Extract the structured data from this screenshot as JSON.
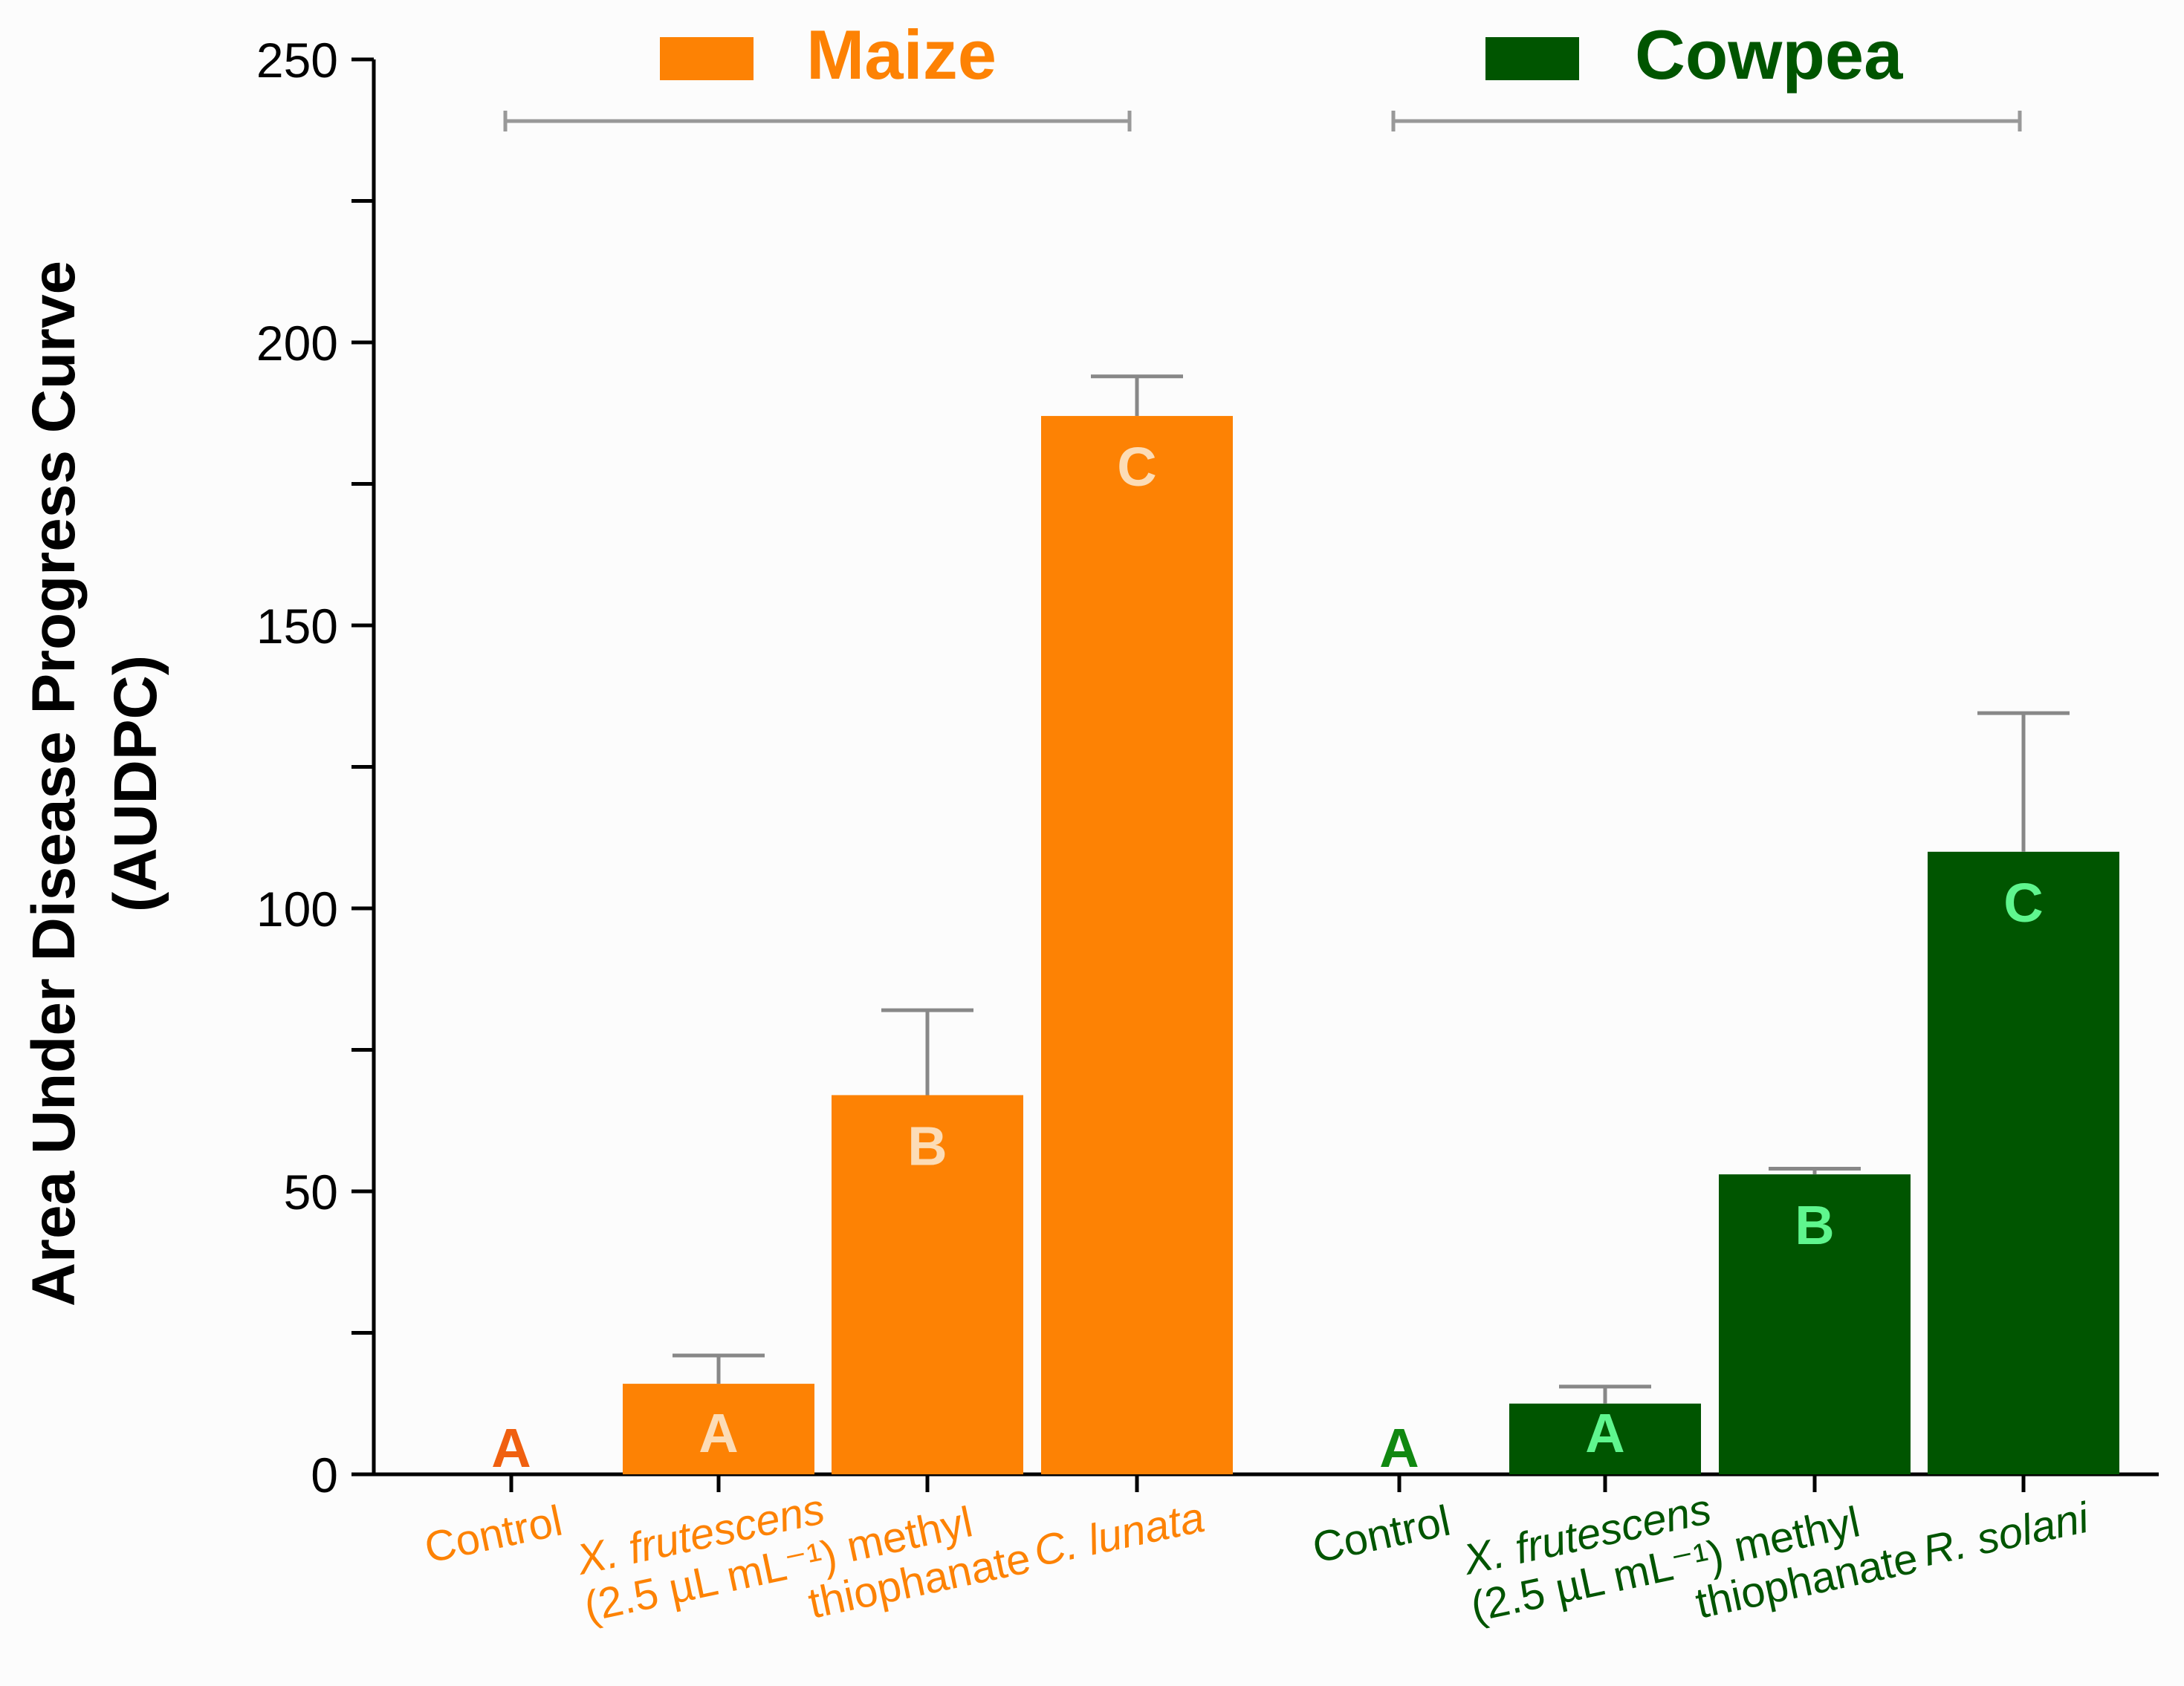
{
  "chart_data": {
    "type": "bar",
    "ylabel": [
      "Area Under Disease Progress Curve",
      "(AUDPC)"
    ],
    "ylim": [
      0,
      250
    ],
    "yticks": [
      0,
      50,
      100,
      150,
      200,
      250
    ],
    "legend": [
      {
        "name": "Maize",
        "color": "#fd8204"
      },
      {
        "name": "Cowpea",
        "color": "#005500"
      }
    ],
    "groups": [
      {
        "name": "Maize",
        "color": "#fd8204",
        "label_color": "#fd8204",
        "letter_inside_color": "#fcdcb6",
        "letter_zero_color": "#f06010",
        "categories": [
          {
            "label": [
              "Control",
              ""
            ],
            "value": 0,
            "error": 0,
            "letter": "A",
            "italic": false
          },
          {
            "label": [
              "X. frutescens",
              "(2.5 µL mL⁻¹)"
            ],
            "value": 16,
            "error": 5,
            "letter": "A",
            "italic": true
          },
          {
            "label": [
              "methyl",
              "thiophanate"
            ],
            "value": 67,
            "error": 15,
            "letter": "B",
            "italic": false
          },
          {
            "label": [
              "C. lunata",
              ""
            ],
            "value": 187,
            "error": 7,
            "letter": "C",
            "italic": true
          }
        ]
      },
      {
        "name": "Cowpea",
        "color": "#005500",
        "label_color": "#005500",
        "letter_inside_color": "#5ff68e",
        "letter_zero_color": "#118811",
        "categories": [
          {
            "label": [
              "Control",
              ""
            ],
            "value": 0,
            "error": 0,
            "letter": "A",
            "italic": false
          },
          {
            "label": [
              "X. frutescens",
              "(2.5 µL mL⁻¹)"
            ],
            "value": 12.5,
            "error": 3,
            "letter": "A",
            "italic": true
          },
          {
            "label": [
              "methyl",
              "thiophanate"
            ],
            "value": 53,
            "error": 1,
            "letter": "B",
            "italic": false
          },
          {
            "label": [
              "R. solani",
              ""
            ],
            "value": 110,
            "error": 24.5,
            "letter": "C",
            "italic": true
          }
        ]
      }
    ]
  }
}
